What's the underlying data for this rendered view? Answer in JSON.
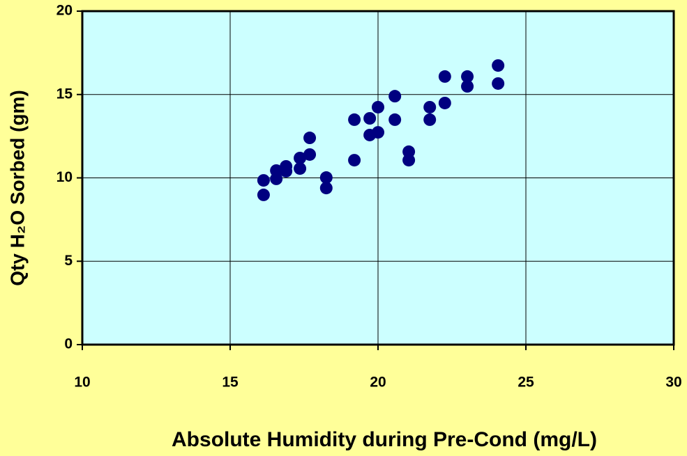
{
  "chart_data": {
    "type": "scatter",
    "xlabel": "Absolute Humidity during Pre-Cond (mg/L)",
    "ylabel": "Qty H₂O Sorbed (gm)",
    "series": [
      {
        "color": "#000080",
        "x": [
          16.13,
          16.13,
          16.56,
          16.56,
          16.89,
          16.89,
          17.36,
          17.36,
          17.69,
          17.69,
          18.25,
          18.25,
          19.2,
          19.2,
          19.72,
          19.72,
          20.0,
          20.0,
          20.57,
          20.57,
          21.04,
          21.04,
          21.75,
          21.75,
          22.26,
          22.26,
          23.02,
          23.02,
          24.06,
          24.06
        ],
        "values": [
          9.85,
          8.98,
          10.44,
          9.94,
          10.69,
          10.4,
          11.19,
          10.56,
          12.4,
          11.4,
          10.02,
          9.39,
          13.49,
          11.06,
          13.57,
          12.57,
          14.24,
          12.73,
          14.9,
          13.49,
          11.57,
          11.06,
          14.24,
          13.49,
          16.08,
          14.49,
          16.08,
          15.49,
          16.74,
          15.66
        ]
      }
    ],
    "xlim": [
      10,
      30
    ],
    "xticks": [
      10,
      15,
      20,
      25,
      30
    ],
    "ylim": [
      0,
      20
    ],
    "yticks": [
      0,
      5,
      10,
      15,
      20
    ],
    "grid": true,
    "plot_background": "#ccffff"
  }
}
